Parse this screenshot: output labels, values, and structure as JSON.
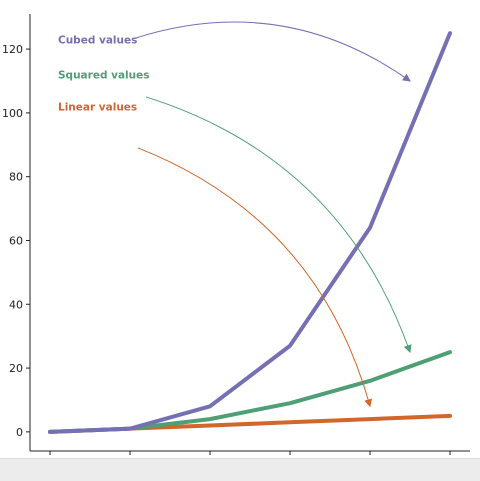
{
  "chart_data": {
    "type": "line",
    "x": [
      0,
      1,
      2,
      3,
      4,
      5
    ],
    "xlim": [
      -0.25,
      5.25
    ],
    "ylim": [
      -6,
      131
    ],
    "xticks": [
      0,
      1,
      2,
      3,
      4,
      5
    ],
    "yticks": [
      0,
      20,
      40,
      60,
      80,
      100,
      120
    ],
    "grid": false,
    "legend": "none",
    "series": [
      {
        "key": "cubed",
        "values": [
          0,
          1,
          8,
          27,
          64,
          125
        ],
        "color": "#7570b3"
      },
      {
        "key": "squared",
        "values": [
          0,
          1,
          4,
          9,
          16,
          25
        ],
        "color": "#4e9e76"
      },
      {
        "key": "linear",
        "values": [
          0,
          1,
          2,
          3,
          4,
          5
        ],
        "color": "#d2662b"
      }
    ],
    "annotations": [
      {
        "series": "cubed",
        "text": "Cubed values",
        "text_at": [
          0.1,
          123
        ],
        "arrow_start": [
          1.05,
          123.3
        ],
        "arrow_to": [
          4.5,
          110
        ],
        "color": "#7570b3"
      },
      {
        "series": "squared",
        "text": "Squared values",
        "text_at": [
          0.1,
          112
        ],
        "arrow_start": [
          1.2,
          105
        ],
        "arrow_to": [
          4.5,
          25
        ],
        "color": "#4e9e76"
      },
      {
        "series": "linear",
        "text": "Linear values",
        "text_at": [
          0.1,
          102
        ],
        "arrow_start": [
          1.1,
          89
        ],
        "arrow_to": [
          4.0,
          8
        ],
        "color": "#d2662b"
      }
    ]
  }
}
